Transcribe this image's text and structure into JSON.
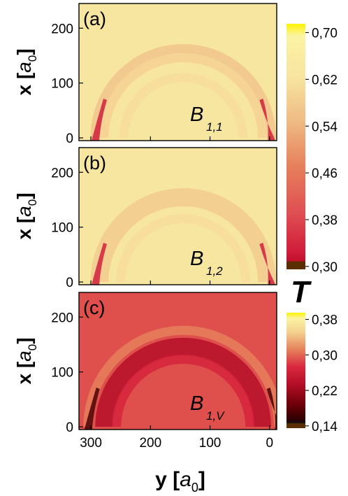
{
  "chart_data": [
    {
      "type": "heatmap",
      "panel_label": "(a)",
      "annotation": {
        "main": "B",
        "sub": "1,1"
      },
      "ylabel": {
        "main": "x",
        "unit_open": "[",
        "unit": "a",
        "unit_sub": "0",
        "unit_close": "]"
      },
      "x_axis": "y",
      "xlim": [
        320,
        -12
      ],
      "ylim": [
        -5,
        245
      ],
      "yticks": [
        0,
        100,
        200
      ],
      "background_value": 0.63,
      "arcs": [
        {
          "center_y": 145,
          "radius": 148,
          "value": 0.57
        },
        {
          "center_y": 145,
          "radius": 133,
          "value": 0.59
        },
        {
          "center_y": 145,
          "radius": 100,
          "value": 0.61
        }
      ],
      "edge_min_value": 0.33,
      "colorbar": "top"
    },
    {
      "type": "heatmap",
      "panel_label": "(b)",
      "annotation": {
        "main": "B",
        "sub": "1,2"
      },
      "ylabel": {
        "main": "x",
        "unit_open": "[",
        "unit": "a",
        "unit_sub": "0",
        "unit_close": "]"
      },
      "x_axis": "y",
      "xlim": [
        320,
        -12
      ],
      "ylim": [
        -5,
        245
      ],
      "yticks": [
        0,
        100,
        200
      ],
      "background_value": 0.63,
      "arcs": [
        {
          "center_y": 145,
          "radius": 148,
          "value": 0.58
        },
        {
          "center_y": 145,
          "radius": 133,
          "value": 0.58
        },
        {
          "center_y": 145,
          "radius": 105,
          "value": 0.61
        }
      ],
      "edge_min_value": 0.33,
      "colorbar": "top"
    },
    {
      "type": "heatmap",
      "panel_label": "(c)",
      "annotation": {
        "main": "B",
        "sub": "1,V"
      },
      "ylabel": {
        "main": "x",
        "unit_open": "[",
        "unit": "a",
        "unit_sub": "0",
        "unit_close": "]"
      },
      "xlabel": {
        "main": "y",
        "unit_open": "[",
        "unit": "a",
        "unit_sub": "0",
        "unit_close": "]"
      },
      "x_axis": "y",
      "xlim": [
        320,
        -12
      ],
      "ylim": [
        -5,
        245
      ],
      "xticks": [
        300,
        200,
        100,
        0
      ],
      "yticks": [
        0,
        100,
        200
      ],
      "background_value": 0.29,
      "arcs": [
        {
          "center_y": 145,
          "radius": 160,
          "value": 0.31
        },
        {
          "center_y": 145,
          "radius": 140,
          "value": 0.24
        },
        {
          "center_y": 145,
          "radius": 125,
          "value": 0.24
        },
        {
          "center_y": 145,
          "radius": 112,
          "value": 0.27
        }
      ],
      "edge_min_value": 0.17,
      "colorbar": "bottom"
    }
  ],
  "colorbars": [
    {
      "ticks": [
        "0,70",
        "0,62",
        "0,54",
        "0,46",
        "0,38",
        "0,30"
      ],
      "range": [
        0.295,
        0.715
      ]
    },
    {
      "ticks": [
        "0,38",
        "0,30",
        "0,22",
        "0,14"
      ],
      "range": [
        0.135,
        0.395
      ]
    }
  ],
  "colorbar_title": "T",
  "colors": {
    "yellow_top": "#fff200",
    "light_yellow": "#fbf3a4",
    "tan": "#f4d796",
    "orange_tan": "#eeac7e",
    "coral": "#e6805c",
    "red": "#e03045",
    "crimson": "#c21030",
    "dark_red": "#6b0008",
    "brown_bottom": "#5a2e00",
    "black": "#111111"
  }
}
